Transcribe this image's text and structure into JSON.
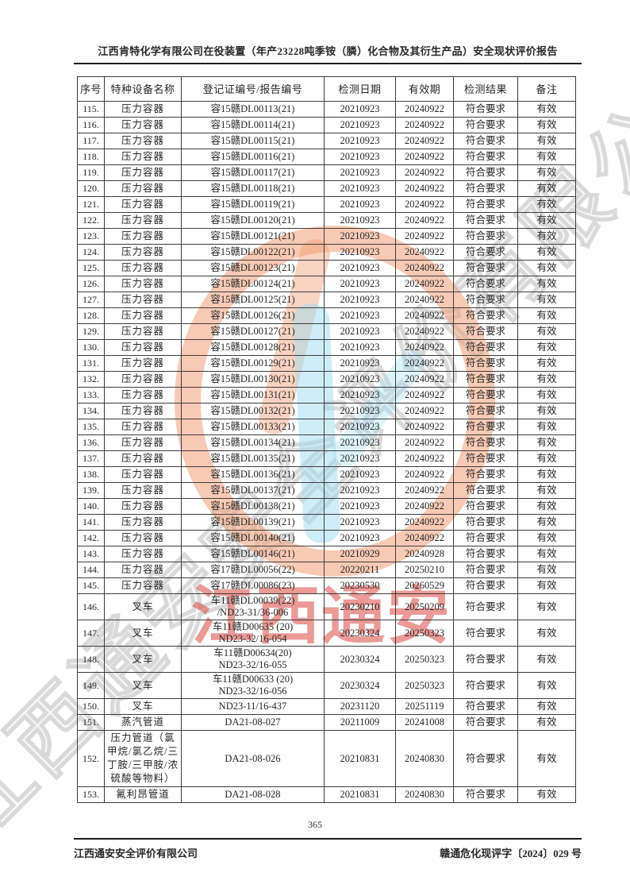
{
  "page": {
    "header_title": "江西肯特化学有限公司在役装置（年产23228吨季铵（膦）化合物及其衍生产品）安全现状评价报告",
    "page_number": "365",
    "footer_left": "江西通安安全评价有限公司",
    "footer_right": "赣通危化现评字〔2024〕029 号"
  },
  "watermark": {
    "stamp_text": "江西通安",
    "diagonal_text": "江西通安安全评价有限公司",
    "ring_color": "#f29e76",
    "cyan_color": "#9edef0",
    "stamp_red": "#d93e36",
    "outline_gray": "#aaaaaa"
  },
  "table": {
    "columns": [
      "序号",
      "特种设备名称",
      "登记证编号/报告编号",
      "检测日期",
      "有效期",
      "检测结果",
      "备注"
    ],
    "rows": [
      {
        "no": "115.",
        "name": "压力容器",
        "reg": "容15赣DL00113(21)",
        "date": "20210923",
        "valid": "20240922",
        "result": "符合要求",
        "note": "有效"
      },
      {
        "no": "116.",
        "name": "压力容器",
        "reg": "容15赣DL00114(21)",
        "date": "20210923",
        "valid": "20240922",
        "result": "符合要求",
        "note": "有效"
      },
      {
        "no": "117.",
        "name": "压力容器",
        "reg": "容15赣DL00115(21)",
        "date": "20210923",
        "valid": "20240922",
        "result": "符合要求",
        "note": "有效"
      },
      {
        "no": "118.",
        "name": "压力容器",
        "reg": "容15赣DL00116(21)",
        "date": "20210923",
        "valid": "20240922",
        "result": "符合要求",
        "note": "有效"
      },
      {
        "no": "119.",
        "name": "压力容器",
        "reg": "容15赣DL00117(21)",
        "date": "20210923",
        "valid": "20240922",
        "result": "符合要求",
        "note": "有效"
      },
      {
        "no": "120.",
        "name": "压力容器",
        "reg": "容15赣DL00118(21)",
        "date": "20210923",
        "valid": "20240922",
        "result": "符合要求",
        "note": "有效"
      },
      {
        "no": "121.",
        "name": "压力容器",
        "reg": "容15赣DL00119(21)",
        "date": "20210923",
        "valid": "20240922",
        "result": "符合要求",
        "note": "有效"
      },
      {
        "no": "122.",
        "name": "压力容器",
        "reg": "容15赣DL00120(21)",
        "date": "20210923",
        "valid": "20240922",
        "result": "符合要求",
        "note": "有效"
      },
      {
        "no": "123.",
        "name": "压力容器",
        "reg": "容15赣DL00121(21)",
        "date": "20210923",
        "valid": "20240922",
        "result": "符合要求",
        "note": "有效"
      },
      {
        "no": "124.",
        "name": "压力容器",
        "reg": "容15赣DL00122(21)",
        "date": "20210923",
        "valid": "20240922",
        "result": "符合要求",
        "note": "有效"
      },
      {
        "no": "125.",
        "name": "压力容器",
        "reg": "容15赣DL00123(21)",
        "date": "20210923",
        "valid": "20240922",
        "result": "符合要求",
        "note": "有效"
      },
      {
        "no": "126.",
        "name": "压力容器",
        "reg": "容15赣DL00124(21)",
        "date": "20210923",
        "valid": "20240922",
        "result": "符合要求",
        "note": "有效"
      },
      {
        "no": "127.",
        "name": "压力容器",
        "reg": "容15赣DL00125(21)",
        "date": "20210923",
        "valid": "20240922",
        "result": "符合要求",
        "note": "有效"
      },
      {
        "no": "128.",
        "name": "压力容器",
        "reg": "容15赣DL00126(21)",
        "date": "20210923",
        "valid": "20240922",
        "result": "符合要求",
        "note": "有效"
      },
      {
        "no": "129.",
        "name": "压力容器",
        "reg": "容15赣DL00127(21)",
        "date": "20210923",
        "valid": "20240922",
        "result": "符合要求",
        "note": "有效"
      },
      {
        "no": "130.",
        "name": "压力容器",
        "reg": "容15赣DL00128(21)",
        "date": "20210923",
        "valid": "20240922",
        "result": "符合要求",
        "note": "有效"
      },
      {
        "no": "131.",
        "name": "压力容器",
        "reg": "容15赣DL00129(21)",
        "date": "20210923",
        "valid": "20240922",
        "result": "符合要求",
        "note": "有效"
      },
      {
        "no": "132.",
        "name": "压力容器",
        "reg": "容15赣DL00130(21)",
        "date": "20210923",
        "valid": "20240922",
        "result": "符合要求",
        "note": "有效"
      },
      {
        "no": "133.",
        "name": "压力容器",
        "reg": "容15赣DL00131(21)",
        "date": "20210923",
        "valid": "20240922",
        "result": "符合要求",
        "note": "有效"
      },
      {
        "no": "134.",
        "name": "压力容器",
        "reg": "容15赣DL00132(21)",
        "date": "20210923",
        "valid": "20240922",
        "result": "符合要求",
        "note": "有效"
      },
      {
        "no": "135.",
        "name": "压力容器",
        "reg": "容15赣DL00133(21)",
        "date": "20210923",
        "valid": "20240922",
        "result": "符合要求",
        "note": "有效"
      },
      {
        "no": "136.",
        "name": "压力容器",
        "reg": "容15赣DL00134(21)",
        "date": "20210923",
        "valid": "20240922",
        "result": "符合要求",
        "note": "有效"
      },
      {
        "no": "137.",
        "name": "压力容器",
        "reg": "容15赣DL00135(21)",
        "date": "20210923",
        "valid": "20240922",
        "result": "符合要求",
        "note": "有效"
      },
      {
        "no": "138.",
        "name": "压力容器",
        "reg": "容15赣DL00136(21)",
        "date": "20210923",
        "valid": "20240922",
        "result": "符合要求",
        "note": "有效"
      },
      {
        "no": "139.",
        "name": "压力容器",
        "reg": "容15赣DL00137(21)",
        "date": "20210923",
        "valid": "20240922",
        "result": "符合要求",
        "note": "有效"
      },
      {
        "no": "140.",
        "name": "压力容器",
        "reg": "容15赣DL00138(21)",
        "date": "20210923",
        "valid": "20240922",
        "result": "符合要求",
        "note": "有效"
      },
      {
        "no": "141.",
        "name": "压力容器",
        "reg": "容15赣DL00139(21)",
        "date": "20210923",
        "valid": "20240922",
        "result": "符合要求",
        "note": "有效"
      },
      {
        "no": "142.",
        "name": "压力容器",
        "reg": "容15赣DL00140(21)",
        "date": "20210923",
        "valid": "20240922",
        "result": "符合要求",
        "note": "有效"
      },
      {
        "no": "143.",
        "name": "压力容器",
        "reg": "容15赣DL00146(21)",
        "date": "20210929",
        "valid": "20240928",
        "result": "符合要求",
        "note": "有效"
      },
      {
        "no": "144.",
        "name": "压力容器",
        "reg": "容17赣DL00056(22)",
        "date": "20220211",
        "valid": "20250210",
        "result": "符合要求",
        "note": "有效"
      },
      {
        "no": "145.",
        "name": "压力容器",
        "reg": "容17赣DL00086(23)",
        "date": "20230530",
        "valid": "20260529",
        "result": "符合要求",
        "note": "有效"
      },
      {
        "no": "146.",
        "name": "叉车",
        "reg": [
          "车11赣DL00039(22)",
          "/ND23-31/36-006"
        ],
        "date": "20230210",
        "valid": "20250209",
        "result": "符合要求",
        "note": "有效"
      },
      {
        "no": "147.",
        "name": "叉车",
        "reg": [
          "车11赣D00635 (20)",
          "ND23-32/16-054"
        ],
        "date": "20230324",
        "valid": "20250323",
        "result": "符合要求",
        "note": "有效"
      },
      {
        "no": "148.",
        "name": "叉车",
        "reg": [
          "车11赣D00634(20)",
          "ND23-32/16-055"
        ],
        "date": "20230324",
        "valid": "20250323",
        "result": "符合要求",
        "note": "有效"
      },
      {
        "no": "149.",
        "name": "叉车",
        "reg": [
          "车11赣D00633 (20)",
          "ND23-32/16-056"
        ],
        "date": "20230324",
        "valid": "20250323",
        "result": "符合要求",
        "note": "有效"
      },
      {
        "no": "150.",
        "name": "叉车",
        "reg": "ND23-11/16-437",
        "date": "20231120",
        "valid": "20251119",
        "result": "符合要求",
        "note": "有效"
      },
      {
        "no": "151.",
        "name": "蒸汽管道",
        "reg": "DA21-08-027",
        "date": "20211009",
        "valid": "20241008",
        "result": "符合要求",
        "note": "有效"
      },
      {
        "no": "152.",
        "name": "压力管道（氯甲烷/氯乙烷/三丁胺/三甲胺/浓硫酸等物料）",
        "reg": "DA21-08-026",
        "date": "20210831",
        "valid": "20240830",
        "result": "符合要求",
        "note": "有效"
      },
      {
        "no": "153.",
        "name": "氟利昂管道",
        "reg": "DA21-08-028",
        "date": "20210831",
        "valid": "20240830",
        "result": "符合要求",
        "note": "有效"
      }
    ]
  }
}
